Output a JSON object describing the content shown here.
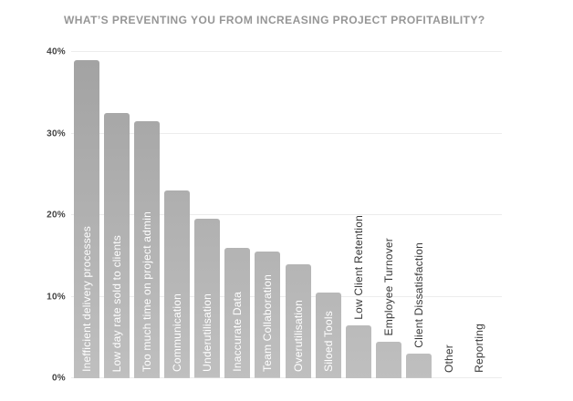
{
  "title": "WHAT’S PREVENTING YOU FROM INCREASING PROJECT PROFITABILITY?",
  "colors": {
    "background": "#ffffff",
    "title": "#969696",
    "axis_label": "#434343",
    "gridline": "#ececec",
    "bar_gradient_top": "#a2a2a2",
    "bar_gradient_bottom": "#bfbfbf",
    "label_inside": "#ffffff",
    "label_outside": "#383838"
  },
  "chart_data": {
    "type": "bar",
    "title": "WHAT’S PREVENTING YOU FROM INCREASING PROJECT PROFITABILITY?",
    "categories": [
      "Inefficient delivery processes",
      "Low day rate sold to clients",
      "Too much time on project admin",
      "Communication",
      "Underutilisation",
      "Inaccurate Data",
      "Team Collaboration",
      "Overutilisation",
      "Siloed Tools",
      "Low Client Retention",
      "Employee Turnover",
      "Client Dissatisfaction",
      "Other",
      "Reporting"
    ],
    "values": [
      39,
      32.5,
      31.5,
      23,
      19.5,
      16,
      15.5,
      14,
      10.5,
      6.5,
      4.5,
      3,
      0,
      0
    ],
    "xlabel": "",
    "ylabel": "",
    "ylim": [
      0,
      40
    ],
    "yticks": [
      {
        "value": 0,
        "label": "0%"
      },
      {
        "value": 10,
        "label": "10%"
      },
      {
        "value": 20,
        "label": "20%"
      },
      {
        "value": 30,
        "label": "30%"
      },
      {
        "value": 40,
        "label": "40%"
      }
    ],
    "grid": true,
    "legend": false,
    "category_label_rotation": -90,
    "inside_label_min_value": 10
  }
}
